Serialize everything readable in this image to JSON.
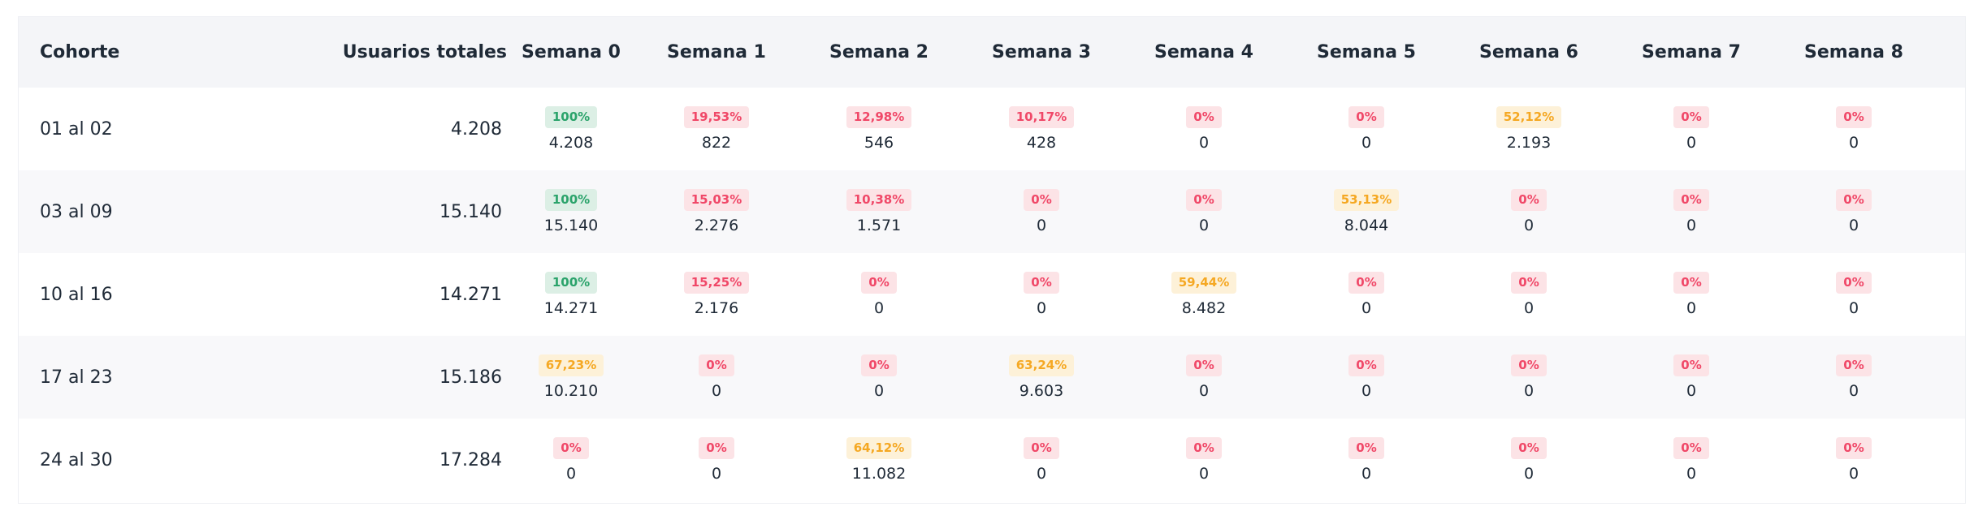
{
  "colors": {
    "green_badge_bg": "#dcefe5",
    "green_badge_text": "#2ba36b",
    "red_badge_bg": "#fce3e6",
    "red_badge_text": "#f04868",
    "yellow_badge_bg": "#fdf1d8",
    "yellow_badge_text": "#f5a823"
  },
  "table": {
    "headers": {
      "cohort": "Cohorte",
      "total_users": "Usuarios totales",
      "weeks": [
        "Semana 0",
        "Semana 1",
        "Semana 2",
        "Semana 3",
        "Semana 4",
        "Semana 5",
        "Semana 6",
        "Semana 7",
        "Semana 8"
      ]
    },
    "rows": [
      {
        "cohort": "01 al 02",
        "total_users": "4.208",
        "cells": [
          {
            "pct": "100%",
            "count": "4.208",
            "tone": "green"
          },
          {
            "pct": "19,53%",
            "count": "822",
            "tone": "red"
          },
          {
            "pct": "12,98%",
            "count": "546",
            "tone": "red"
          },
          {
            "pct": "10,17%",
            "count": "428",
            "tone": "red"
          },
          {
            "pct": "0%",
            "count": "0",
            "tone": "red"
          },
          {
            "pct": "0%",
            "count": "0",
            "tone": "red"
          },
          {
            "pct": "52,12%",
            "count": "2.193",
            "tone": "yellow"
          },
          {
            "pct": "0%",
            "count": "0",
            "tone": "red"
          },
          {
            "pct": "0%",
            "count": "0",
            "tone": "red"
          }
        ]
      },
      {
        "cohort": "03 al 09",
        "total_users": "15.140",
        "cells": [
          {
            "pct": "100%",
            "count": "15.140",
            "tone": "green"
          },
          {
            "pct": "15,03%",
            "count": "2.276",
            "tone": "red"
          },
          {
            "pct": "10,38%",
            "count": "1.571",
            "tone": "red"
          },
          {
            "pct": "0%",
            "count": "0",
            "tone": "red"
          },
          {
            "pct": "0%",
            "count": "0",
            "tone": "red"
          },
          {
            "pct": "53,13%",
            "count": "8.044",
            "tone": "yellow"
          },
          {
            "pct": "0%",
            "count": "0",
            "tone": "red"
          },
          {
            "pct": "0%",
            "count": "0",
            "tone": "red"
          },
          {
            "pct": "0%",
            "count": "0",
            "tone": "red"
          }
        ]
      },
      {
        "cohort": "10 al 16",
        "total_users": "14.271",
        "cells": [
          {
            "pct": "100%",
            "count": "14.271",
            "tone": "green"
          },
          {
            "pct": "15,25%",
            "count": "2.176",
            "tone": "red"
          },
          {
            "pct": "0%",
            "count": "0",
            "tone": "red"
          },
          {
            "pct": "0%",
            "count": "0",
            "tone": "red"
          },
          {
            "pct": "59,44%",
            "count": "8.482",
            "tone": "yellow"
          },
          {
            "pct": "0%",
            "count": "0",
            "tone": "red"
          },
          {
            "pct": "0%",
            "count": "0",
            "tone": "red"
          },
          {
            "pct": "0%",
            "count": "0",
            "tone": "red"
          },
          {
            "pct": "0%",
            "count": "0",
            "tone": "red"
          }
        ]
      },
      {
        "cohort": "17 al 23",
        "total_users": "15.186",
        "cells": [
          {
            "pct": "67,23%",
            "count": "10.210",
            "tone": "yellow"
          },
          {
            "pct": "0%",
            "count": "0",
            "tone": "red"
          },
          {
            "pct": "0%",
            "count": "0",
            "tone": "red"
          },
          {
            "pct": "63,24%",
            "count": "9.603",
            "tone": "yellow"
          },
          {
            "pct": "0%",
            "count": "0",
            "tone": "red"
          },
          {
            "pct": "0%",
            "count": "0",
            "tone": "red"
          },
          {
            "pct": "0%",
            "count": "0",
            "tone": "red"
          },
          {
            "pct": "0%",
            "count": "0",
            "tone": "red"
          },
          {
            "pct": "0%",
            "count": "0",
            "tone": "red"
          }
        ]
      },
      {
        "cohort": "24 al 30",
        "total_users": "17.284",
        "cells": [
          {
            "pct": "0%",
            "count": "0",
            "tone": "red"
          },
          {
            "pct": "0%",
            "count": "0",
            "tone": "red"
          },
          {
            "pct": "64,12%",
            "count": "11.082",
            "tone": "yellow"
          },
          {
            "pct": "0%",
            "count": "0",
            "tone": "red"
          },
          {
            "pct": "0%",
            "count": "0",
            "tone": "red"
          },
          {
            "pct": "0%",
            "count": "0",
            "tone": "red"
          },
          {
            "pct": "0%",
            "count": "0",
            "tone": "red"
          },
          {
            "pct": "0%",
            "count": "0",
            "tone": "red"
          },
          {
            "pct": "0%",
            "count": "0",
            "tone": "red"
          }
        ]
      }
    ]
  }
}
